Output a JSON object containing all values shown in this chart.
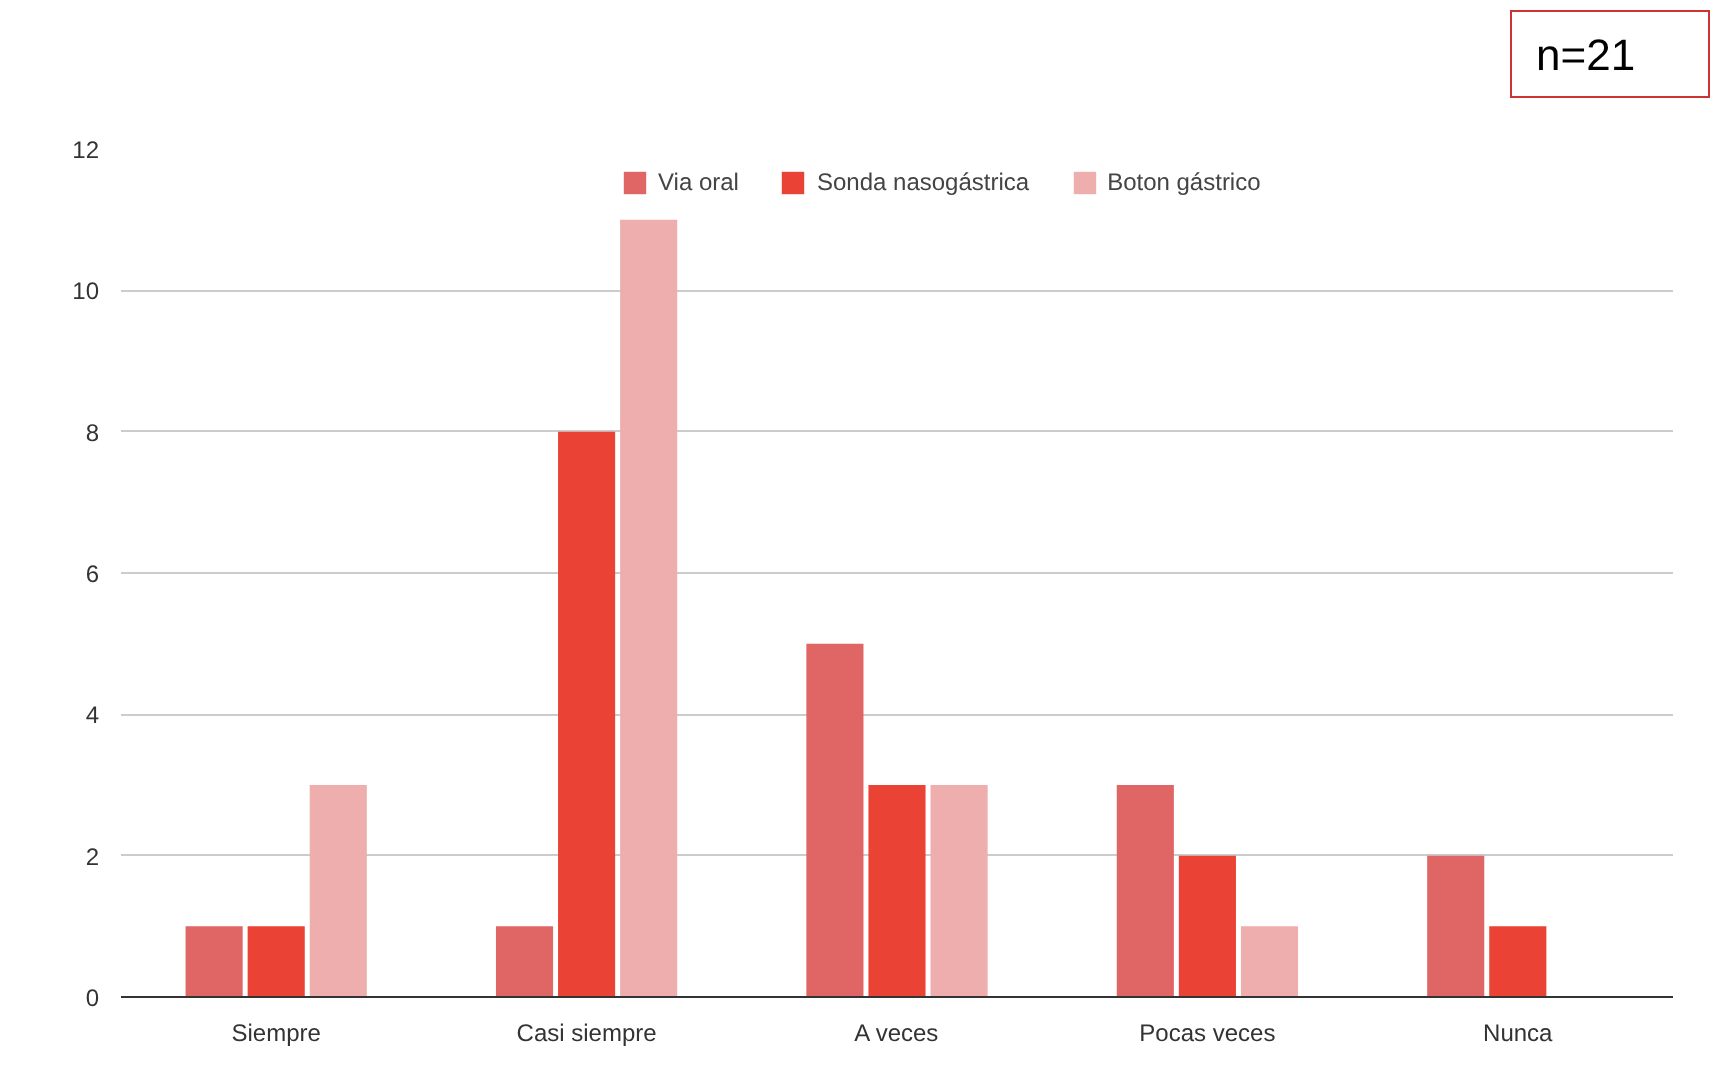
{
  "chart_data": {
    "type": "bar",
    "categories": [
      "Siempre",
      "Casi siempre",
      "A veces",
      "Pocas veces",
      "Nunca"
    ],
    "series": [
      {
        "name": "Via oral",
        "color": "#e06666",
        "values": [
          1,
          1,
          5,
          3,
          2
        ]
      },
      {
        "name": "Sonda nasogástrica",
        "color": "#ea4335",
        "values": [
          1,
          8,
          3,
          2,
          1
        ]
      },
      {
        "name": "Boton gástrico",
        "color": "#eeaeae",
        "values": [
          3,
          11,
          3,
          1,
          0
        ]
      }
    ],
    "ylim": [
      0,
      12
    ],
    "yticks": [
      0,
      2,
      4,
      6,
      8,
      10,
      12
    ],
    "grid": "y",
    "legend": "top",
    "annotations": [
      "n=21"
    ]
  }
}
